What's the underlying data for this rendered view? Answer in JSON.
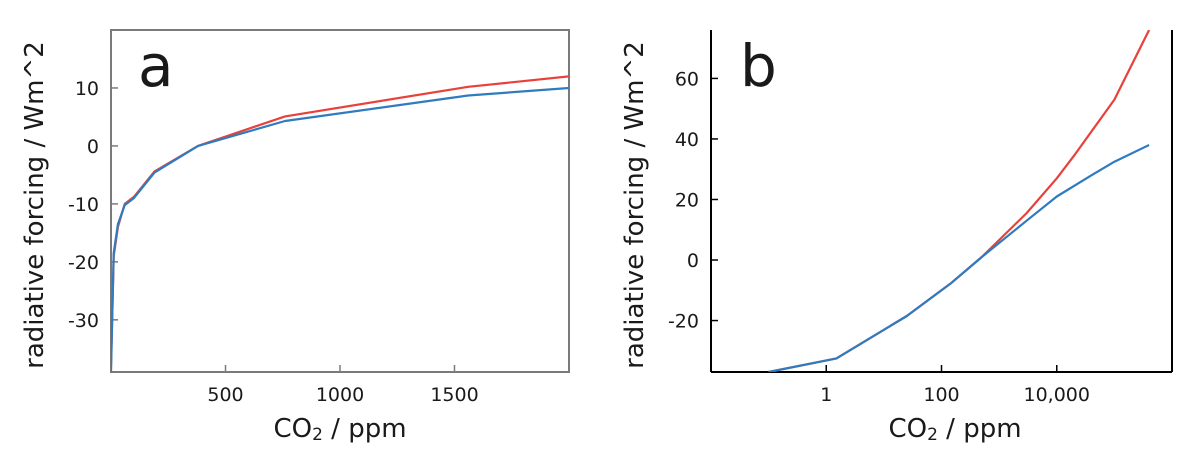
{
  "chart_data": [
    {
      "type": "line",
      "panel_label": "a",
      "xlabel_main": "CO",
      "xlabel_sub": "2",
      "xlabel_suffix": " / ppm",
      "ylabel": "radiative forcing / Wm^2",
      "xscale": "linear",
      "xlim": [
        0,
        2000
      ],
      "ylim": [
        -39,
        20
      ],
      "x_ticks": [
        500,
        1000,
        1500
      ],
      "x_tick_labels": [
        "500",
        "1000",
        "1500"
      ],
      "y_ticks": [
        10,
        0,
        -10,
        -20,
        -30
      ],
      "y_tick_labels": [
        "10",
        "0",
        "-10",
        "-20",
        "-30"
      ],
      "frame_color": "#7a7a7a",
      "series": [
        {
          "name": "red",
          "color": "#e8413c",
          "points": [
            [
              0,
              -38
            ],
            [
              12,
              -19
            ],
            [
              30,
              -14
            ],
            [
              60,
              -10
            ],
            [
              100,
              -8.8
            ],
            [
              190,
              -4.4
            ],
            [
              380,
              0
            ],
            [
              760,
              5.1
            ],
            [
              1560,
              10.2
            ],
            [
              2000,
              12
            ]
          ]
        },
        {
          "name": "blue",
          "color": "#2f7bbf",
          "points": [
            [
              0,
              -39
            ],
            [
              12,
              -18.5
            ],
            [
              30,
              -13.5
            ],
            [
              60,
              -10.2
            ],
            [
              100,
              -9
            ],
            [
              190,
              -4.6
            ],
            [
              380,
              0
            ],
            [
              760,
              4.3
            ],
            [
              1560,
              8.7
            ],
            [
              2000,
              10
            ]
          ]
        }
      ]
    },
    {
      "type": "line",
      "panel_label": "b",
      "xlabel_main": "CO",
      "xlabel_sub": "2",
      "xlabel_suffix": " / ppm",
      "ylabel": "radiative forcing / Wm^2",
      "xscale": "log",
      "xlim": [
        0.01,
        1000000
      ],
      "ylim": [
        -37,
        76
      ],
      "x_ticks": [
        1,
        100,
        10000
      ],
      "x_tick_labels": [
        "1",
        "100",
        "10,000"
      ],
      "y_ticks": [
        60,
        40,
        20,
        0,
        -20
      ],
      "y_tick_labels": [
        "60",
        "40",
        "20",
        "0",
        "-20"
      ],
      "frame_color": "#000000",
      "series": [
        {
          "name": "red",
          "color": "#e8413c",
          "points": [
            [
              0.1,
              -37
            ],
            [
              1.5,
              -32.5
            ],
            [
              25,
              -18.5
            ],
            [
              150,
              -7.5
            ],
            [
              500,
              1
            ],
            [
              3000,
              15.5
            ],
            [
              10000,
              27
            ],
            [
              20000,
              34.5
            ],
            [
              100000,
              53
            ],
            [
              400000,
              76
            ]
          ]
        },
        {
          "name": "blue",
          "color": "#2f7bbf",
          "points": [
            [
              0.1,
              -37
            ],
            [
              1.5,
              -32.5
            ],
            [
              25,
              -18.5
            ],
            [
              150,
              -7.5
            ],
            [
              500,
              1
            ],
            [
              3000,
              13
            ],
            [
              10000,
              21
            ],
            [
              40000,
              28
            ],
            [
              100000,
              32.5
            ],
            [
              400000,
              38
            ]
          ]
        }
      ]
    }
  ]
}
